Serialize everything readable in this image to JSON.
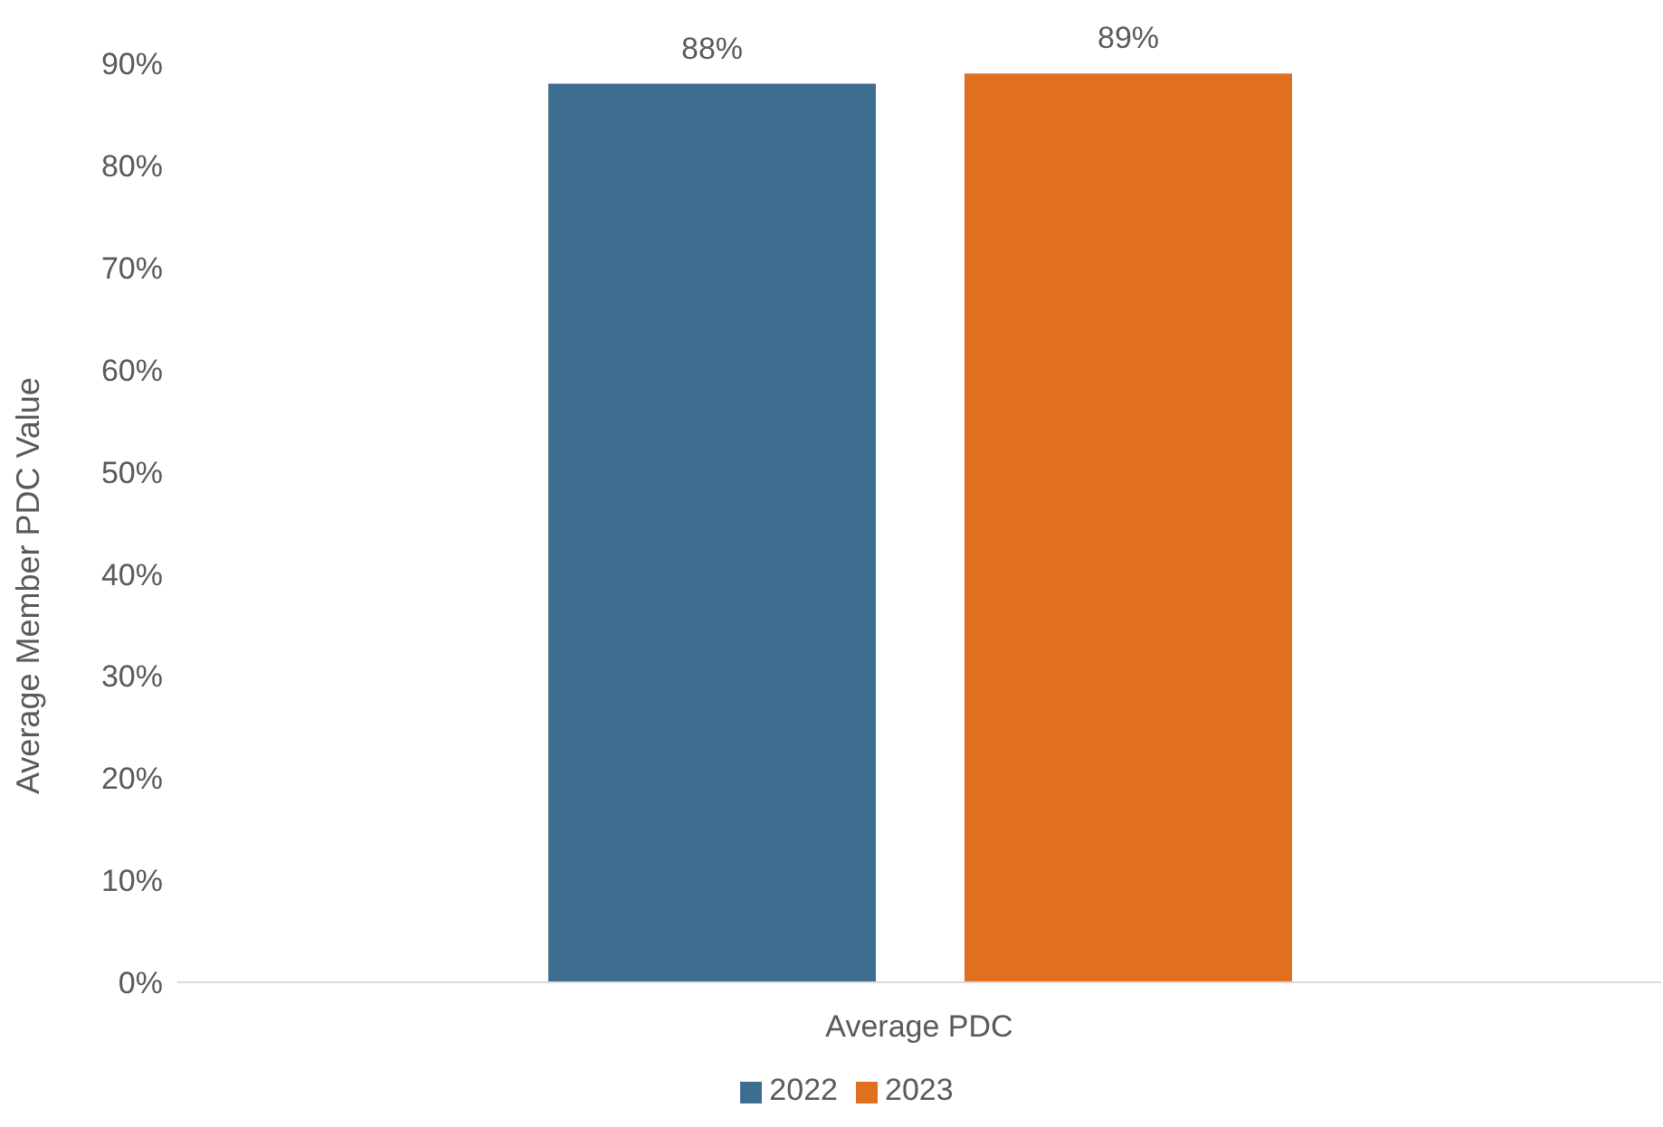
{
  "chart_data": {
    "type": "bar",
    "ylabel": "Average Member PDC Value",
    "categories": [
      "Average PDC"
    ],
    "series": [
      {
        "name": "2022",
        "color": "#3d6e8f",
        "values": [
          88
        ],
        "value_labels": [
          "88%"
        ]
      },
      {
        "name": "2023",
        "color": "#e06f1f",
        "values": [
          89
        ],
        "value_labels": [
          "89%"
        ]
      }
    ],
    "ylim": [
      0,
      90
    ],
    "yticks": [
      {
        "value": 0,
        "label": "0%"
      },
      {
        "value": 10,
        "label": "10%"
      },
      {
        "value": 20,
        "label": "20%"
      },
      {
        "value": 30,
        "label": "30%"
      },
      {
        "value": 40,
        "label": "40%"
      },
      {
        "value": 50,
        "label": "50%"
      },
      {
        "value": 60,
        "label": "60%"
      },
      {
        "value": 70,
        "label": "70%"
      },
      {
        "value": 80,
        "label": "80%"
      },
      {
        "value": 90,
        "label": "90%"
      }
    ],
    "legend": "bottom"
  }
}
